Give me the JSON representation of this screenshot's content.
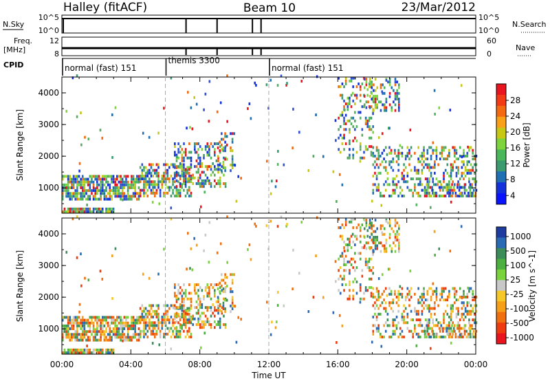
{
  "header": {
    "station": "Halley (fitACF)",
    "beam": "Beam 10",
    "date": "23/Mar/2012"
  },
  "strips": {
    "nsky_label": "N.Sky",
    "nsky_ticks": [
      "10^5",
      "10^0"
    ],
    "nsearch_label": "N.Search",
    "nsearch_ticks": [
      "10^5",
      "10^0"
    ],
    "freq_label": "Freq.",
    "freq_unit": "[MHz]",
    "freq_ticks": [
      "12",
      "8"
    ],
    "nave_label": "Nave",
    "nave_ticks": [
      "60",
      "0"
    ],
    "cpid_label": "CPID",
    "cpid_segments": [
      {
        "label": "normal (fast) 151",
        "start": 0,
        "end": 6
      },
      {
        "label": "themis 3300",
        "start": 6,
        "end": 12
      },
      {
        "label": "normal (fast) 151",
        "start": 12,
        "end": 24
      }
    ],
    "nsky_drops": [
      7.2,
      9,
      11.05,
      11.55
    ]
  },
  "chart_data": [
    {
      "type": "heatmap",
      "parameter": "Power",
      "ylabel": "Slant Range [km]",
      "xlabel": "",
      "xlim": [
        0,
        24
      ],
      "ylim": [
        200,
        4500
      ],
      "yticks": [
        "1000",
        "2000",
        "3000",
        "4000"
      ],
      "colorbar_label": "Power [dB]",
      "colorbar_ticks": [
        "28",
        "24",
        "20",
        "16",
        "12",
        "8",
        "4"
      ],
      "colorbar_colors": [
        "#e8141e",
        "#f23a14",
        "#f36a10",
        "#f7a018",
        "#c7c814",
        "#7dd43c",
        "#4ab85a",
        "#3c9a70",
        "#1e6fb4",
        "#1432dc",
        "#0a14ff"
      ]
    },
    {
      "type": "heatmap",
      "parameter": "Velocity",
      "ylabel": "Slant Range [km]",
      "xlabel": "Time UT",
      "xlim": [
        0,
        24
      ],
      "ylim": [
        200,
        4500
      ],
      "yticks": [
        "1000",
        "2000",
        "3000",
        "4000"
      ],
      "xticks": [
        "00:00",
        "04:00",
        "08:00",
        "12:00",
        "16:00",
        "20:00",
        "00:00"
      ],
      "colorbar_label": "Velocity [m s^-1]",
      "colorbar_ticks": [
        "1000",
        "500",
        "100",
        "25",
        "-25",
        "-100",
        "-500",
        "-1000"
      ],
      "colorbar_colors": [
        "#1e3ca0",
        "#2a6ab4",
        "#3c8c5a",
        "#4cb040",
        "#7ad23c",
        "#c8c8c8",
        "#f5c828",
        "#f5a018",
        "#f07010",
        "#ee3c10",
        "#e8141e"
      ]
    }
  ]
}
